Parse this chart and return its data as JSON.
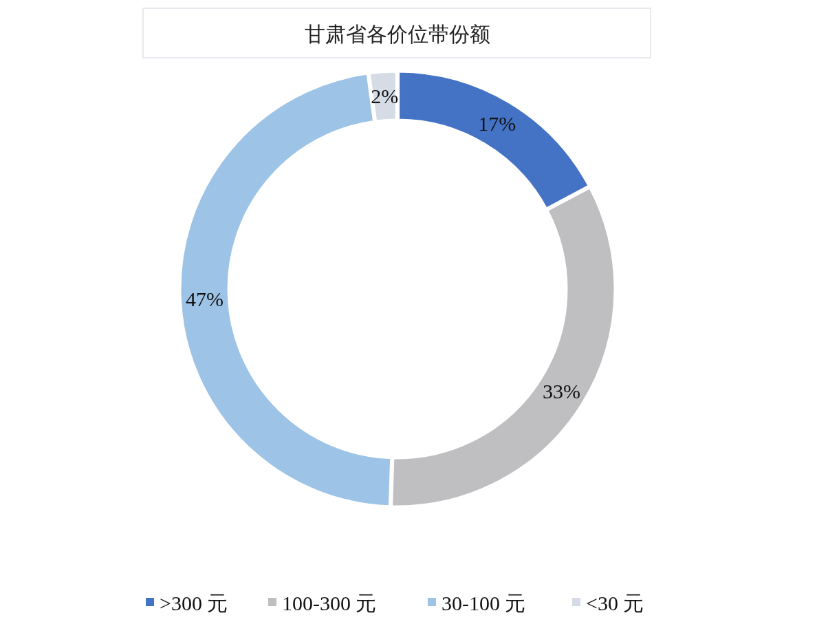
{
  "chart_data": {
    "type": "donut",
    "title": "甘肃省各价位带份额",
    "categories": [
      ">300 元",
      "100-300 元",
      "30-100 元",
      "<30 元"
    ],
    "values": [
      17,
      33,
      47,
      2
    ],
    "colors": [
      "#4472c4",
      "#bfbfc1",
      "#9dc3e6",
      "#d6dce5"
    ],
    "value_labels": [
      "17%",
      "33%",
      "47%",
      "2%"
    ],
    "legend": "bottom"
  }
}
